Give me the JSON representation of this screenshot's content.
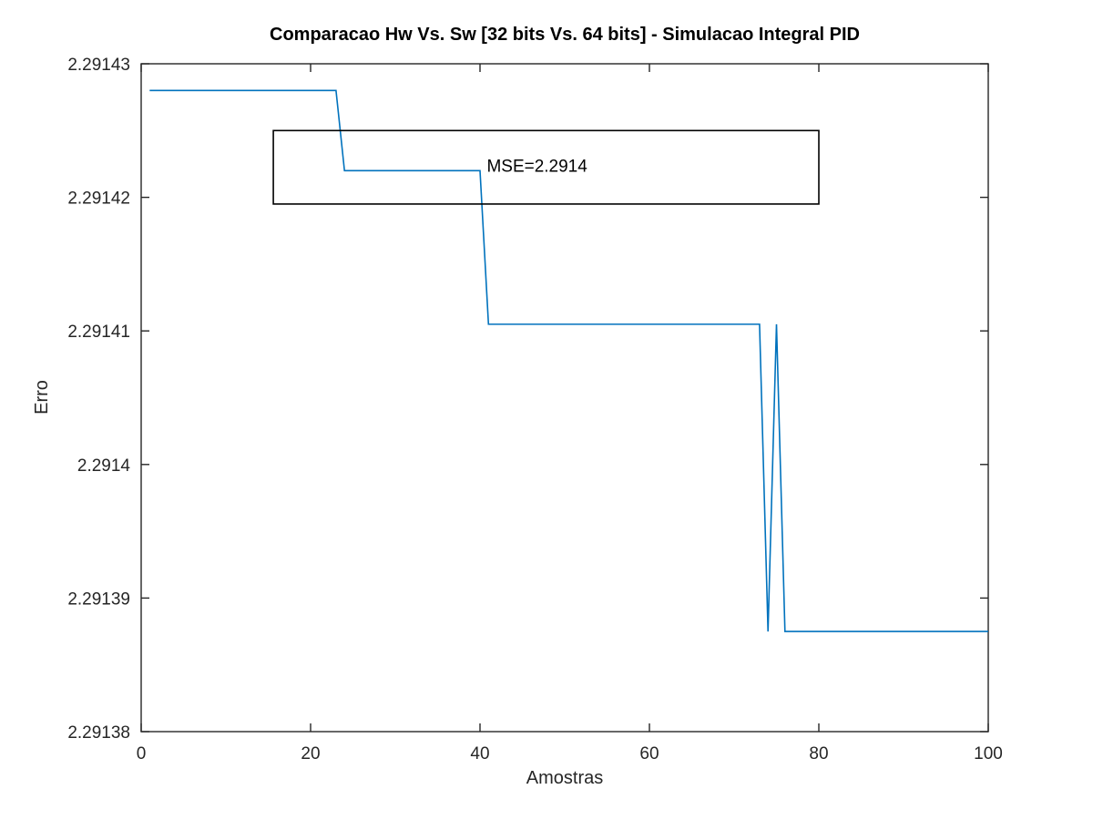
{
  "chart_data": {
    "type": "line",
    "title": "Comparacao Hw Vs. Sw [32 bits Vs. 64 bits] - Simulacao Integral PID",
    "xlabel": "Amostras",
    "ylabel": "Erro",
    "xlim": [
      0,
      100
    ],
    "ylim": [
      2.29138,
      2.29143
    ],
    "x_ticks": [
      0,
      20,
      40,
      60,
      80,
      100
    ],
    "x_tick_labels": [
      "0",
      "20",
      "40",
      "60",
      "80",
      "100"
    ],
    "y_ticks": [
      2.29138,
      2.29139,
      2.2914,
      2.29141,
      2.29142,
      2.29143
    ],
    "y_tick_labels": [
      "2.29138",
      "2.29139",
      "2.2914",
      "2.29141",
      "2.29142",
      "2.29143"
    ],
    "grid": false,
    "series": [
      {
        "color": "#0072bd",
        "x": [
          1,
          23,
          24,
          40,
          41,
          73,
          74,
          75,
          76,
          100
        ],
        "y": [
          2.291428,
          2.291428,
          2.291422,
          2.291422,
          2.2914105,
          2.2914105,
          2.2913875,
          2.2914105,
          2.2913875,
          2.2913875
        ]
      }
    ],
    "annotations": [
      {
        "text": "MSE=2.2914",
        "x": 40.8,
        "y": 2.2914219,
        "box": {
          "x": [
            15.6,
            80
          ],
          "y": [
            2.2914195,
            2.291425
          ]
        }
      }
    ],
    "colors": {
      "axes": "#262626",
      "series": "#0072bd",
      "annotation_box": "#000000"
    }
  }
}
